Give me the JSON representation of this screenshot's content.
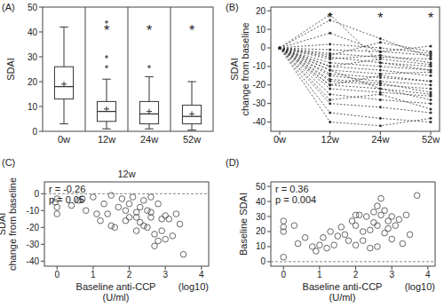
{
  "chart_data": [
    {
      "type": "box",
      "title": "(A)",
      "y_label": "SDAI",
      "color": "#333333",
      "categories": [
        "0w",
        "12w",
        "24w",
        "52w"
      ],
      "boxes": [
        {
          "whisker_low": 3,
          "q1": 13,
          "median": 18,
          "q3": 26,
          "whisker_high": 42,
          "mean": 19,
          "outliers": []
        },
        {
          "whisker_low": 1,
          "q1": 4,
          "median": 8,
          "q3": 12,
          "whisker_high": 21,
          "mean": 9,
          "outliers": [
            26,
            30,
            44
          ]
        },
        {
          "whisker_low": 1,
          "q1": 3,
          "median": 7,
          "q3": 12,
          "whisker_high": 22,
          "mean": 8,
          "outliers": [
            26
          ]
        },
        {
          "whisker_low": 0.5,
          "q1": 3,
          "median": 6,
          "q3": 10.5,
          "whisker_high": 20,
          "mean": 7,
          "outliers": []
        }
      ],
      "ylim": [
        0,
        50
      ],
      "yticks": [
        0,
        10,
        20,
        30,
        40,
        50
      ],
      "annotations": [
        {
          "category": "12w",
          "text": "*"
        },
        {
          "category": "24w",
          "text": "*"
        },
        {
          "category": "52w",
          "text": "*"
        }
      ]
    },
    {
      "type": "line",
      "title": "(B)",
      "y_label": [
        "SDAI",
        "change from baseline"
      ],
      "color": "#333333",
      "marker": "dot",
      "line_style": "dashed",
      "categories": [
        "0w",
        "12w",
        "24w",
        "52w"
      ],
      "series": [
        {
          "values": [
            0,
            -10,
            -12,
            -15
          ]
        },
        {
          "values": [
            0,
            -20,
            -22,
            -25
          ]
        },
        {
          "values": [
            0,
            -5,
            -8,
            -10
          ]
        },
        {
          "values": [
            0,
            15,
            5,
            -5
          ]
        },
        {
          "values": [
            0,
            -30,
            -32,
            -35
          ]
        },
        {
          "values": [
            0,
            -15,
            -18,
            -20
          ]
        },
        {
          "values": [
            0,
            -8,
            -10,
            -12
          ]
        },
        {
          "values": [
            0,
            2,
            0,
            -3
          ]
        },
        {
          "values": [
            0,
            -25,
            -28,
            -30
          ]
        },
        {
          "values": [
            0,
            -12,
            -14,
            -13
          ]
        },
        {
          "values": [
            0,
            -18,
            -20,
            -22
          ]
        },
        {
          "values": [
            0,
            -3,
            -5,
            -6
          ]
        },
        {
          "values": [
            0,
            -35,
            -38,
            -40
          ]
        },
        {
          "values": [
            0,
            -22,
            -24,
            -26
          ]
        },
        {
          "values": [
            0,
            8,
            -2,
            -4
          ]
        },
        {
          "values": [
            0,
            -6,
            -4,
            -8
          ]
        },
        {
          "values": [
            0,
            -28,
            -25,
            -33
          ]
        },
        {
          "values": [
            0,
            -14,
            -16,
            -18
          ]
        },
        {
          "values": [
            0,
            -1,
            -2,
            1
          ]
        },
        {
          "values": [
            0,
            -10,
            -6,
            -9
          ]
        },
        {
          "values": [
            0,
            -17,
            -19,
            -24
          ]
        },
        {
          "values": [
            0,
            -40,
            -42,
            -38
          ]
        },
        {
          "values": [
            0,
            -20,
            -15,
            -18
          ]
        },
        {
          "values": [
            0,
            -4,
            3,
            -2
          ]
        },
        {
          "values": [
            0,
            -12,
            -22,
            -28
          ]
        },
        {
          "values": [
            0,
            18,
            -8,
            -12
          ]
        }
      ],
      "ylim": [
        -45,
        22
      ],
      "yticks": [
        20,
        10,
        0,
        -10,
        -20,
        -30,
        -40
      ],
      "annotations": [
        {
          "category": "12w",
          "text": "*"
        },
        {
          "category": "24w",
          "text": "*"
        },
        {
          "category": "52w",
          "text": "*"
        }
      ]
    },
    {
      "type": "scatter",
      "title": "(C)",
      "subtitle": "12w",
      "y_label": [
        "SDAI",
        "change from baseline"
      ],
      "x_label": [
        "Baseline anti-CCP",
        "(U/ml)"
      ],
      "x_note": "(log10)",
      "color": "#555555",
      "marker": "open-circle",
      "annotations": [
        "r = -0.26",
        "p = 0.05"
      ],
      "reference_line": 0,
      "x": [
        0.0,
        0.0,
        0.0,
        -0.05,
        0.6,
        0.7,
        0.8,
        1.0,
        1.1,
        1.2,
        1.3,
        1.4,
        1.5,
        1.6,
        1.7,
        1.8,
        1.9,
        1.9,
        2.0,
        2.0,
        2.1,
        2.2,
        2.2,
        2.3,
        2.3,
        2.4,
        2.4,
        2.5,
        2.5,
        2.6,
        2.6,
        2.7,
        2.7,
        2.8,
        2.8,
        2.9,
        2.9,
        3.0,
        3.0,
        3.1,
        3.2,
        3.3,
        3.4,
        3.5,
        2.6,
        1.5,
        2.2,
        0.4
      ],
      "values": [
        -3,
        -8,
        -12,
        -5,
        -4,
        -3,
        -10,
        -2,
        -12,
        -16,
        -6,
        -12,
        -19,
        -20,
        -8,
        -3,
        -10,
        -16,
        -6,
        -14,
        -2,
        -11,
        -14,
        -8,
        -17,
        -19,
        -4,
        -10,
        -20,
        -2,
        -11,
        -24,
        -31,
        -6,
        -28,
        -15,
        -22,
        -13,
        -27,
        -15,
        -25,
        -12,
        -18,
        -36,
        -14,
        -1,
        -22,
        -7
      ],
      "xlim": [
        -0.35,
        4.2
      ],
      "xticks": [
        0,
        1,
        2,
        3,
        4
      ],
      "ylim": [
        -43,
        7
      ],
      "yticks": [
        0,
        -10,
        -20,
        -30,
        -40
      ]
    },
    {
      "type": "scatter",
      "title": "(D)",
      "y_label": "Baseline SDAI",
      "x_label": [
        "Baseline anti-CCP",
        "(U/ml)"
      ],
      "x_note": "(log10)",
      "color": "#555555",
      "marker": "open-circle",
      "annotations": [
        "r = 0.36",
        "p = 0.004"
      ],
      "reference_line": 0,
      "x": [
        0.0,
        0.0,
        0.0,
        0.0,
        0.3,
        0.4,
        0.6,
        0.8,
        0.9,
        1.0,
        1.1,
        1.2,
        1.3,
        1.5,
        1.6,
        1.7,
        1.8,
        1.9,
        2.0,
        2.0,
        2.1,
        2.2,
        2.2,
        2.3,
        2.4,
        2.4,
        2.5,
        2.5,
        2.6,
        2.6,
        2.7,
        2.7,
        2.8,
        2.8,
        2.9,
        2.9,
        3.0,
        3.0,
        3.1,
        3.2,
        3.3,
        3.4,
        3.5,
        3.7,
        2.6,
        2.0,
        1.4
      ],
      "values": [
        27,
        20,
        23,
        3,
        24,
        12,
        16,
        10,
        7,
        11,
        16,
        9,
        20,
        17,
        23,
        18,
        14,
        27,
        24,
        11,
        31,
        20,
        14,
        30,
        21,
        9,
        33,
        26,
        24,
        37,
        31,
        42,
        34,
        19,
        22,
        27,
        30,
        15,
        24,
        28,
        12,
        31,
        18,
        44,
        10,
        31,
        11
      ],
      "xlim": [
        -0.35,
        4.2
      ],
      "xticks": [
        0,
        1,
        2,
        3,
        4
      ],
      "ylim": [
        -3,
        53
      ],
      "yticks": [
        0,
        10,
        20,
        30,
        40,
        50
      ]
    }
  ]
}
